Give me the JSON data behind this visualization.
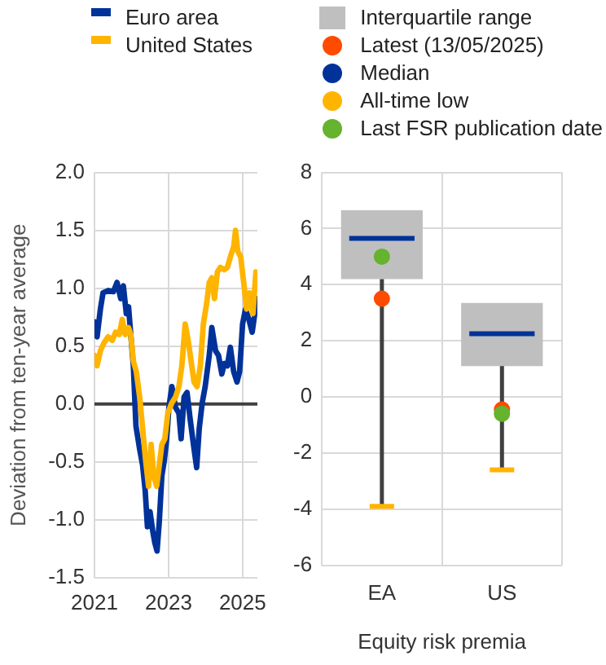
{
  "chart_data": [
    {
      "type": "line",
      "ylabel": "Deviation from ten-year average",
      "xlim": [
        2021,
        2025.4
      ],
      "xticks": [
        2021,
        2023,
        2025
      ],
      "ylim": [
        -1.5,
        2
      ],
      "yticks": [
        {
          "value": -1.5,
          "label": "-1.5"
        },
        {
          "value": -1,
          "label": "-1.0"
        },
        {
          "value": -0.5,
          "label": "-0.5"
        },
        {
          "value": 0,
          "label": "0.0"
        },
        {
          "value": 0.5,
          "label": "0.5"
        },
        {
          "value": 1,
          "label": "1.0"
        },
        {
          "value": 1.5,
          "label": "1.5"
        },
        {
          "value": 2,
          "label": "2.0"
        }
      ],
      "grid": true,
      "legend": "top left",
      "ref_lines": [
        {
          "axis": "y",
          "value": 0,
          "color": "#404040"
        }
      ],
      "series": [
        {
          "name": "Euro area",
          "color": "#003299",
          "x": [
            2021.0,
            2021.07,
            2021.16,
            2021.23,
            2021.37,
            2021.51,
            2021.61,
            2021.71,
            2021.78,
            2021.86,
            2021.92,
            2021.98,
            2022.05,
            2022.12,
            2022.22,
            2022.3,
            2022.37,
            2022.43,
            2022.5,
            2022.57,
            2022.63,
            2022.69,
            2022.75,
            2022.82,
            2022.89,
            2022.95,
            2023.01,
            2023.09,
            2023.19,
            2023.28,
            2023.34,
            2023.42,
            2023.5,
            2023.58,
            2023.69,
            2023.76,
            2023.83,
            2023.91,
            2023.99,
            2024.1,
            2024.17,
            2024.27,
            2024.35,
            2024.44,
            2024.51,
            2024.59,
            2024.67,
            2024.76,
            2024.85,
            2024.92,
            2025.0,
            2025.08,
            2025.17,
            2025.26,
            2025.33,
            2025.4
          ],
          "values": [
            0.71,
            0.58,
            0.82,
            0.96,
            0.98,
            0.97,
            1.05,
            0.91,
            1.02,
            0.78,
            0.84,
            0.6,
            0.33,
            -0.19,
            -0.39,
            -0.53,
            -0.75,
            -1.06,
            -0.93,
            -1.09,
            -1.2,
            -1.27,
            -1.02,
            -0.62,
            -0.48,
            -0.3,
            -0.03,
            0.15,
            -0.03,
            -0.08,
            -0.3,
            0.06,
            0.1,
            -0.12,
            -0.39,
            -0.55,
            -0.21,
            0.01,
            0.15,
            0.42,
            0.66,
            0.46,
            0.42,
            0.26,
            0.35,
            0.33,
            0.49,
            0.28,
            0.19,
            0.28,
            0.69,
            0.82,
            0.73,
            0.62,
            0.78,
            0.91
          ]
        },
        {
          "name": "United States",
          "color": "#ffb400",
          "x": [
            2021.0,
            2021.07,
            2021.16,
            2021.26,
            2021.37,
            2021.48,
            2021.57,
            2021.67,
            2021.75,
            2021.83,
            2021.92,
            2021.98,
            2022.05,
            2022.13,
            2022.22,
            2022.3,
            2022.38,
            2022.46,
            2022.53,
            2022.6,
            2022.68,
            2022.75,
            2022.82,
            2022.9,
            2022.98,
            2023.09,
            2023.19,
            2023.28,
            2023.36,
            2023.45,
            2023.53,
            2023.61,
            2023.69,
            2023.77,
            2023.86,
            2023.94,
            2024.03,
            2024.1,
            2024.17,
            2024.24,
            2024.32,
            2024.4,
            2024.51,
            2024.59,
            2024.67,
            2024.76,
            2024.81,
            2024.87,
            2024.95,
            2025.03,
            2025.11,
            2025.19,
            2025.28,
            2025.36
          ],
          "values": [
            0.42,
            0.33,
            0.46,
            0.53,
            0.58,
            0.55,
            0.62,
            0.6,
            0.73,
            0.6,
            0.66,
            0.6,
            0.37,
            0.28,
            0.06,
            -0.21,
            -0.48,
            -0.71,
            -0.35,
            -0.62,
            -0.71,
            -0.53,
            -0.35,
            -0.3,
            -0.08,
            0.01,
            0.06,
            0.15,
            0.33,
            0.69,
            0.55,
            0.37,
            0.19,
            0.15,
            0.33,
            0.69,
            0.87,
            1.05,
            1.09,
            0.91,
            1.14,
            1.18,
            1.16,
            1.18,
            1.27,
            1.36,
            1.5,
            1.32,
            1.27,
            1.05,
            0.82,
            0.96,
            0.78,
            1.14
          ]
        }
      ]
    },
    {
      "type": "box",
      "xlabel": "Equity risk premia",
      "categories": [
        "EA",
        "US"
      ],
      "ylim": [
        -6,
        8
      ],
      "yticks": [
        -6,
        -4,
        -2,
        0,
        2,
        4,
        6,
        8
      ],
      "grid": true,
      "legend": "top right",
      "annotations": [
        "Median",
        "All-time low"
      ],
      "series": [
        {
          "name": "Interquartile range",
          "color": "#bfbfbf",
          "boxes": [
            {
              "low": -3.9,
              "q1": 4.2,
              "median": 5.65,
              "q3": 6.65,
              "high": 6.65
            },
            {
              "low": -2.6,
              "q1": 1.1,
              "median": 2.25,
              "q3": 3.35,
              "high": 3.35
            }
          ]
        },
        {
          "name": "Latest (13/05/2025)",
          "type": "scatter",
          "marker": "circle",
          "color": "#ff4b00",
          "values": [
            3.5,
            -0.45
          ]
        },
        {
          "name": "Last FSR publication date",
          "type": "scatter",
          "marker": "circle",
          "color": "#65b32e",
          "values": [
            5.0,
            -0.6
          ]
        }
      ]
    }
  ]
}
